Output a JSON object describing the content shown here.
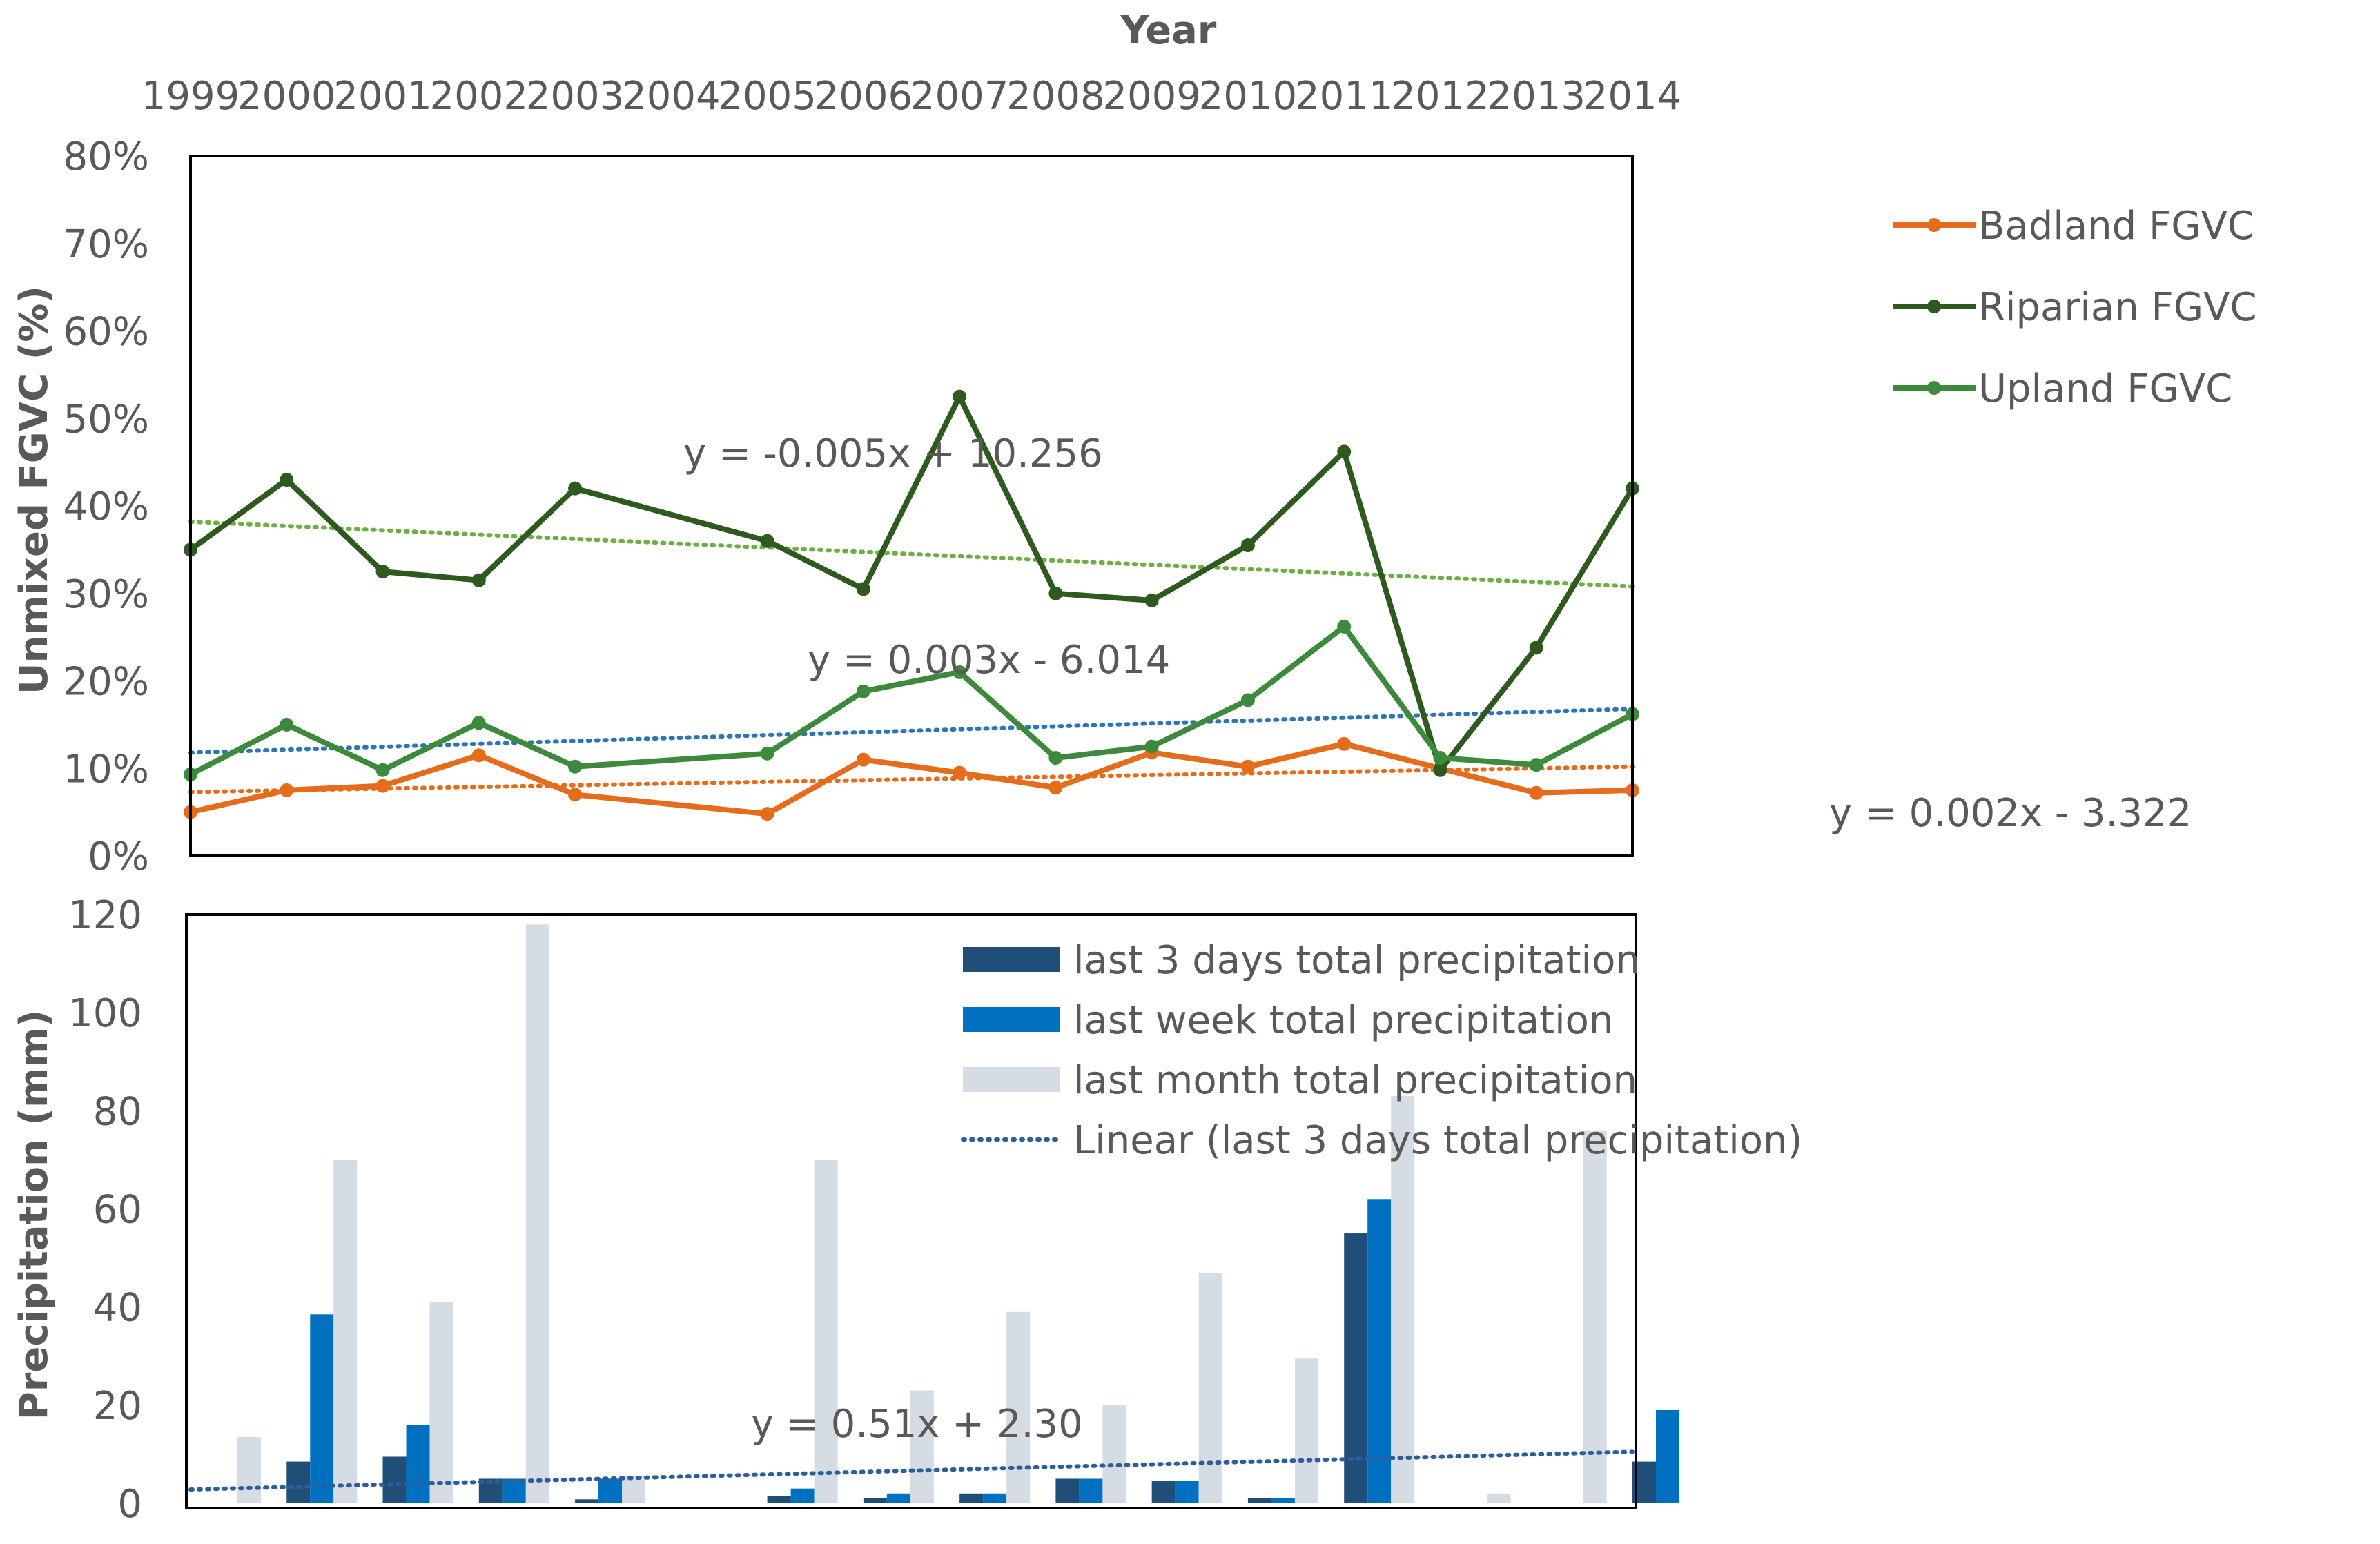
{
  "chart_data": [
    {
      "type": "line",
      "title": "",
      "xlabel": "Year",
      "ylabel": "Unmixed FGVC (%)",
      "x_ticks": [
        "1999",
        "2000",
        "2001",
        "2002",
        "2003",
        "2004",
        "2005",
        "2006",
        "2007",
        "2008",
        "2009",
        "2010",
        "2011",
        "2012",
        "2013",
        "2014"
      ],
      "ylim": [
        0,
        80
      ],
      "y_ticks": [
        "0%",
        "10%",
        "20%",
        "30%",
        "40%",
        "50%",
        "60%",
        "70%",
        "80%"
      ],
      "series": [
        {
          "name": "Badland FGVC",
          "color": "#E46C1A",
          "x": [
            1999,
            2000,
            2001,
            2002,
            2003,
            2005,
            2006,
            2007,
            2008,
            2009,
            2010,
            2011,
            2012,
            2013,
            2014
          ],
          "values": [
            5,
            7.5,
            8,
            11.5,
            7,
            4.8,
            11,
            9.5,
            7.8,
            11.8,
            10.2,
            12.8,
            10,
            7.2,
            7.5
          ]
        },
        {
          "name": "Riparian FGVC",
          "color": "#2E5A1F",
          "x": [
            1999,
            2000,
            2001,
            2002,
            2003,
            2005,
            2006,
            2007,
            2008,
            2009,
            2010,
            2011,
            2012,
            2013,
            2014
          ],
          "values": [
            35,
            43,
            32.5,
            31.5,
            42,
            36,
            30.5,
            52.5,
            30,
            29.2,
            35.5,
            46.2,
            9.8,
            23.8,
            42
          ]
        },
        {
          "name": "Upland FGVC",
          "color": "#3D8A3D",
          "x": [
            1999,
            2000,
            2001,
            2002,
            2003,
            2005,
            2006,
            2007,
            2008,
            2009,
            2010,
            2011,
            2012,
            2013,
            2014
          ],
          "values": [
            9.3,
            15,
            9.8,
            15.2,
            10.2,
            11.7,
            18.8,
            21,
            11.2,
            12.5,
            17.8,
            26.2,
            11.2,
            10.4,
            16.2
          ]
        }
      ],
      "trendlines": [
        {
          "equation": "y = -0.005x + 10.256",
          "color": "#6FAD47",
          "start": [
            1999,
            38.2
          ],
          "end": [
            2014,
            30.8
          ]
        },
        {
          "equation": "y = 0.003x - 6.014",
          "color": "#2E75B6",
          "start": [
            1999,
            11.8
          ],
          "end": [
            2014,
            16.8
          ]
        },
        {
          "equation": "y = 0.002x - 3.322",
          "color": "#E46C1A",
          "start": [
            1999,
            7.3
          ],
          "end": [
            2014,
            10.2
          ]
        }
      ],
      "legend": {
        "position": "top-right"
      }
    },
    {
      "type": "bar",
      "title": "",
      "xlabel": "",
      "ylabel": "Precipitation (mm)",
      "ylim": [
        0,
        120
      ],
      "y_ticks": [
        "0",
        "20",
        "40",
        "60",
        "80",
        "100",
        "120"
      ],
      "categories": [
        "1999",
        "2000",
        "2001",
        "2002",
        "2003",
        "2004",
        "2005",
        "2006",
        "2007",
        "2008",
        "2009",
        "2010",
        "2011",
        "2012",
        "2013",
        "2014"
      ],
      "series": [
        {
          "name": "last 3 days total precipitation",
          "color": "#1F4E79",
          "values": [
            0,
            8.5,
            9.5,
            5,
            0.8,
            0,
            1.5,
            1,
            2,
            5,
            4.5,
            1,
            55,
            0,
            0,
            8.5
          ]
        },
        {
          "name": "last week total precipitation",
          "color": "#0070C0",
          "values": [
            0,
            38.5,
            16,
            5,
            5,
            0,
            3,
            2,
            2,
            5,
            4.5,
            1,
            62,
            0,
            0,
            19
          ]
        },
        {
          "name": "last month total precipitation",
          "color": "#D6DCE4",
          "values": [
            13.5,
            70,
            41,
            118,
            5.5,
            0,
            70,
            23,
            39,
            20,
            47,
            29.5,
            83,
            2,
            76,
            0
          ]
        }
      ],
      "trendline": {
        "label": "Linear (last 3 days total precipitation)",
        "equation": "y = 0.51x + 2.30",
        "color": "#2E5D9B",
        "start": [
          1999,
          2.8
        ],
        "end": [
          2014,
          10.5
        ]
      },
      "legend": {
        "position": "top-center"
      }
    }
  ]
}
